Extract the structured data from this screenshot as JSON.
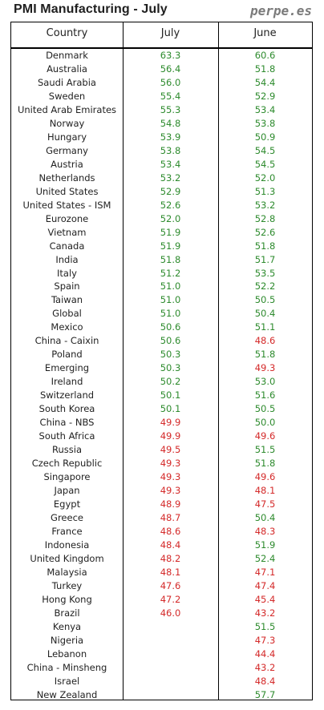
{
  "title": "PMI Manufacturing - July",
  "brand": "perpe.es",
  "colors": {
    "above_50": "#2e8b2e",
    "below_50": "#d42a2a"
  },
  "headers": {
    "country": "Country",
    "july": "July",
    "june": "June"
  },
  "rows": [
    {
      "country": "Denmark",
      "july": "63.3",
      "june": "60.6"
    },
    {
      "country": "Australia",
      "july": "56.4",
      "june": "51.8"
    },
    {
      "country": "Saudi Arabia",
      "july": "56.0",
      "june": "54.4"
    },
    {
      "country": "Sweden",
      "july": "55.4",
      "june": "52.9"
    },
    {
      "country": "United Arab Emirates",
      "july": "55.3",
      "june": "53.4"
    },
    {
      "country": "Norway",
      "july": "54.8",
      "june": "53.8"
    },
    {
      "country": "Hungary",
      "july": "53.9",
      "june": "50.9"
    },
    {
      "country": "Germany",
      "july": "53.8",
      "june": "54.5"
    },
    {
      "country": "Austria",
      "july": "53.4",
      "june": "54.5"
    },
    {
      "country": "Netherlands",
      "july": "53.2",
      "june": "52.0"
    },
    {
      "country": "United States",
      "july": "52.9",
      "june": "51.3"
    },
    {
      "country": "United States - ISM",
      "july": "52.6",
      "june": "53.2"
    },
    {
      "country": "Eurozone",
      "july": "52.0",
      "june": "52.8"
    },
    {
      "country": "Vietnam",
      "july": "51.9",
      "june": "52.6"
    },
    {
      "country": "Canada",
      "july": "51.9",
      "june": "51.8"
    },
    {
      "country": "India",
      "july": "51.8",
      "june": "51.7"
    },
    {
      "country": "Italy",
      "july": "51.2",
      "june": "53.5"
    },
    {
      "country": "Spain",
      "july": "51.0",
      "june": "52.2"
    },
    {
      "country": "Taiwan",
      "july": "51.0",
      "june": "50.5"
    },
    {
      "country": "Global",
      "july": "51.0",
      "june": "50.4"
    },
    {
      "country": "Mexico",
      "july": "50.6",
      "june": "51.1"
    },
    {
      "country": "China - Caixin",
      "july": "50.6",
      "june": "48.6"
    },
    {
      "country": "Poland",
      "july": "50.3",
      "june": "51.8"
    },
    {
      "country": "Emerging",
      "july": "50.3",
      "june": "49.3"
    },
    {
      "country": "Ireland",
      "july": "50.2",
      "june": "53.0"
    },
    {
      "country": "Switzerland",
      "july": "50.1",
      "june": "51.6"
    },
    {
      "country": "South Korea",
      "july": "50.1",
      "june": "50.5"
    },
    {
      "country": "China - NBS",
      "july": "49.9",
      "june": "50.0"
    },
    {
      "country": "South Africa",
      "july": "49.9",
      "june": "49.6"
    },
    {
      "country": "Russia",
      "july": "49.5",
      "june": "51.5"
    },
    {
      "country": "Czech Republic",
      "july": "49.3",
      "june": "51.8"
    },
    {
      "country": "Singapore",
      "july": "49.3",
      "june": "49.6"
    },
    {
      "country": "Japan",
      "july": "49.3",
      "june": "48.1"
    },
    {
      "country": "Egypt",
      "july": "48.9",
      "june": "47.5"
    },
    {
      "country": "Greece",
      "july": "48.7",
      "june": "50.4"
    },
    {
      "country": "France",
      "july": "48.6",
      "june": "48.3"
    },
    {
      "country": "Indonesia",
      "july": "48.4",
      "june": "51.9"
    },
    {
      "country": "United Kingdom",
      "july": "48.2",
      "june": "52.4"
    },
    {
      "country": "Malaysia",
      "july": "48.1",
      "june": "47.1"
    },
    {
      "country": "Turkey",
      "july": "47.6",
      "june": "47.4"
    },
    {
      "country": "Hong Kong",
      "july": "47.2",
      "june": "45.4"
    },
    {
      "country": "Brazil",
      "july": "46.0",
      "june": "43.2"
    },
    {
      "country": "Kenya",
      "july": "",
      "june": "51.5"
    },
    {
      "country": "Nigeria",
      "july": "",
      "june": "47.3"
    },
    {
      "country": "Lebanon",
      "july": "",
      "june": "44.4"
    },
    {
      "country": "China - Minsheng",
      "july": "",
      "june": "43.2"
    },
    {
      "country": "Israel",
      "july": "",
      "june": "48.4"
    },
    {
      "country": "New Zealand",
      "july": "",
      "june": "57.7"
    }
  ]
}
